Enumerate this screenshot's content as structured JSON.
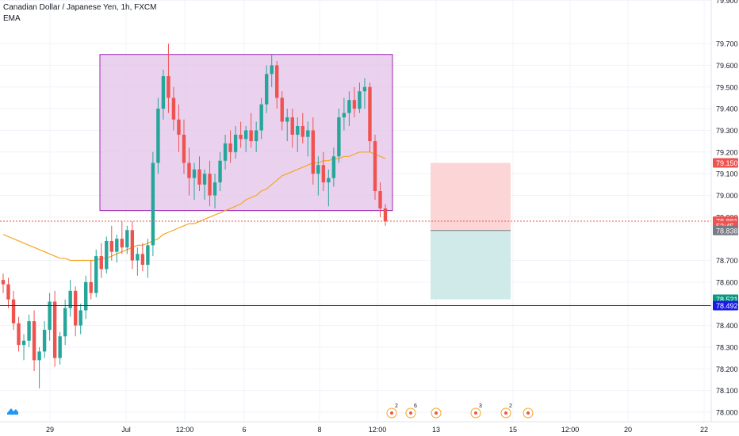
{
  "chart_title": "Canadian Dollar / Japanese Yen, 1h, FXCM",
  "indicator_label": "EMA",
  "colors": {
    "up": "#26a69a",
    "down": "#ef5350",
    "ema": "#f5a623",
    "range_box_fill": "#e1bee7",
    "range_box_stroke": "#9c27b0",
    "stop_zone": "#fcd6d6",
    "target_zone": "#cfeae8",
    "support_line": "#1a1ae6",
    "price_line": "#ef5350",
    "brand": "#2196f3"
  },
  "chart_data": {
    "type": "candlestick",
    "symbol": "CADJPY",
    "timeframe": "1h",
    "ylim": [
      77.98,
      79.82
    ],
    "y_ticks": [
      "79.900",
      "79.700",
      "79.600",
      "79.500",
      "79.400",
      "79.300",
      "79.200",
      "79.100",
      "79.000",
      "78.900",
      "78.700",
      "78.600",
      "78.500",
      "78.400",
      "78.300",
      "78.200",
      "78.100",
      "78.000"
    ],
    "x_ticks": [
      "29",
      "Jul",
      "12:00",
      "6",
      "8",
      "12:00",
      "13",
      "15",
      "12:00",
      "20",
      "22"
    ],
    "price_labels": [
      {
        "text": "79.150",
        "value": 79.15,
        "color": "#ef5350"
      },
      {
        "text": "78.881",
        "value": 78.881,
        "color": "#ef5350"
      },
      {
        "text": "53:45",
        "value": 78.86,
        "color": "#ef5350"
      },
      {
        "text": "78.838",
        "value": 78.838,
        "color": "#787b86"
      },
      {
        "text": "78.521",
        "value": 78.521,
        "color": "#089981"
      },
      {
        "text": "78.492",
        "value": 78.492,
        "color": "#1a1ae6"
      }
    ],
    "range_box": {
      "high": 79.65,
      "low": 78.93
    },
    "position": {
      "stop": 79.15,
      "entry": 78.838,
      "target": 78.521
    },
    "support_level": 78.492,
    "current_price": 78.881,
    "events": [
      {
        "label": "2"
      },
      {
        "label": "6"
      },
      {
        "label": ""
      },
      {
        "label": "3"
      },
      {
        "label": "2"
      },
      {
        "label": ""
      }
    ],
    "candles": [
      [
        78.61,
        78.64,
        78.55,
        78.59
      ],
      [
        78.59,
        78.62,
        78.48,
        78.52
      ],
      [
        78.52,
        78.56,
        78.38,
        78.41
      ],
      [
        78.41,
        78.44,
        78.28,
        78.31
      ],
      [
        78.31,
        78.36,
        78.24,
        78.33
      ],
      [
        78.33,
        78.45,
        78.3,
        78.42
      ],
      [
        78.42,
        78.47,
        78.19,
        78.24
      ],
      [
        78.24,
        78.3,
        78.11,
        78.28
      ],
      [
        78.28,
        78.42,
        78.25,
        78.38
      ],
      [
        78.38,
        78.55,
        78.33,
        78.51
      ],
      [
        78.51,
        78.56,
        78.21,
        78.25
      ],
      [
        78.25,
        78.37,
        78.22,
        78.35
      ],
      [
        78.35,
        78.52,
        78.31,
        78.48
      ],
      [
        78.48,
        78.61,
        78.44,
        78.56
      ],
      [
        78.56,
        78.58,
        78.35,
        78.4
      ],
      [
        78.4,
        78.5,
        78.36,
        78.47
      ],
      [
        78.47,
        78.63,
        78.43,
        78.6
      ],
      [
        78.6,
        78.7,
        78.52,
        78.55
      ],
      [
        78.55,
        78.75,
        78.53,
        78.72
      ],
      [
        78.72,
        78.78,
        78.62,
        78.66
      ],
      [
        78.66,
        78.81,
        78.64,
        78.79
      ],
      [
        78.79,
        78.86,
        78.7,
        78.74
      ],
      [
        78.74,
        78.82,
        78.69,
        78.8
      ],
      [
        78.8,
        78.88,
        78.73,
        78.76
      ],
      [
        78.76,
        78.86,
        78.73,
        78.84
      ],
      [
        78.84,
        78.88,
        78.66,
        78.7
      ],
      [
        78.7,
        78.76,
        78.63,
        78.73
      ],
      [
        78.73,
        78.78,
        78.65,
        78.68
      ],
      [
        78.68,
        78.8,
        78.62,
        78.77
      ],
      [
        78.77,
        79.2,
        78.72,
        79.15
      ],
      [
        79.15,
        79.45,
        79.1,
        79.4
      ],
      [
        79.4,
        79.58,
        79.35,
        79.55
      ],
      [
        79.55,
        79.7,
        79.38,
        79.45
      ],
      [
        79.45,
        79.5,
        79.3,
        79.35
      ],
      [
        79.35,
        79.42,
        79.2,
        79.28
      ],
      [
        79.28,
        79.35,
        79.1,
        79.15
      ],
      [
        79.15,
        79.22,
        79.0,
        79.08
      ],
      [
        79.08,
        79.15,
        78.98,
        79.12
      ],
      [
        79.12,
        79.18,
        79.02,
        79.05
      ],
      [
        79.05,
        79.12,
        78.98,
        79.1
      ],
      [
        79.1,
        79.16,
        78.95,
        79.0
      ],
      [
        79.0,
        79.1,
        78.94,
        79.06
      ],
      [
        79.06,
        79.2,
        79.02,
        79.16
      ],
      [
        79.16,
        79.28,
        79.12,
        79.24
      ],
      [
        79.24,
        79.3,
        79.15,
        79.2
      ],
      [
        79.2,
        79.32,
        79.17,
        79.28
      ],
      [
        79.28,
        79.34,
        79.22,
        79.26
      ],
      [
        79.26,
        79.32,
        79.2,
        79.3
      ],
      [
        79.3,
        79.38,
        79.22,
        79.25
      ],
      [
        79.25,
        79.34,
        79.2,
        79.3
      ],
      [
        79.3,
        79.45,
        79.26,
        79.42
      ],
      [
        79.42,
        79.6,
        79.38,
        79.56
      ],
      [
        79.56,
        79.65,
        79.5,
        79.6
      ],
      [
        79.6,
        79.62,
        79.4,
        79.45
      ],
      [
        79.45,
        79.48,
        79.3,
        79.34
      ],
      [
        79.34,
        79.4,
        79.25,
        79.36
      ],
      [
        79.36,
        79.4,
        79.22,
        79.28
      ],
      [
        79.28,
        79.36,
        79.2,
        79.32
      ],
      [
        79.32,
        79.38,
        79.24,
        79.27
      ],
      [
        79.27,
        79.34,
        79.18,
        79.3
      ],
      [
        79.3,
        79.36,
        79.05,
        79.1
      ],
      [
        79.1,
        79.18,
        79.0,
        79.14
      ],
      [
        79.14,
        79.2,
        79.02,
        79.06
      ],
      [
        79.06,
        79.12,
        78.95,
        79.08
      ],
      [
        79.08,
        79.22,
        79.04,
        79.18
      ],
      [
        79.18,
        79.4,
        79.15,
        79.36
      ],
      [
        79.36,
        79.45,
        79.3,
        79.38
      ],
      [
        79.38,
        79.48,
        79.32,
        79.44
      ],
      [
        79.44,
        79.5,
        79.36,
        79.4
      ],
      [
        79.4,
        79.52,
        79.38,
        79.48
      ],
      [
        79.48,
        79.54,
        79.4,
        79.5
      ],
      [
        79.5,
        79.52,
        79.2,
        79.25
      ],
      [
        79.25,
        79.28,
        78.98,
        79.02
      ],
      [
        79.02,
        79.06,
        78.9,
        78.94
      ],
      [
        78.94,
        78.96,
        78.86,
        78.88
      ]
    ],
    "ema_values": [
      78.82,
      78.81,
      78.8,
      78.79,
      78.78,
      78.77,
      78.76,
      78.75,
      78.74,
      78.73,
      78.72,
      78.71,
      78.71,
      78.7,
      78.7,
      78.7,
      78.7,
      78.7,
      78.7,
      78.71,
      78.71,
      78.72,
      78.73,
      78.74,
      78.75,
      78.76,
      78.77,
      78.77,
      78.78,
      78.79,
      78.8,
      78.82,
      78.83,
      78.84,
      78.85,
      78.86,
      78.87,
      78.87,
      78.88,
      78.89,
      78.9,
      78.91,
      78.92,
      78.93,
      78.94,
      78.95,
      78.96,
      78.98,
      78.99,
      79.0,
      79.02,
      79.03,
      79.05,
      79.07,
      79.09,
      79.1,
      79.11,
      79.12,
      79.13,
      79.14,
      79.15,
      79.15,
      79.16,
      79.16,
      79.17,
      79.17,
      79.18,
      79.18,
      79.19,
      79.2,
      79.2,
      79.2,
      79.19,
      79.18,
      79.17
    ]
  }
}
